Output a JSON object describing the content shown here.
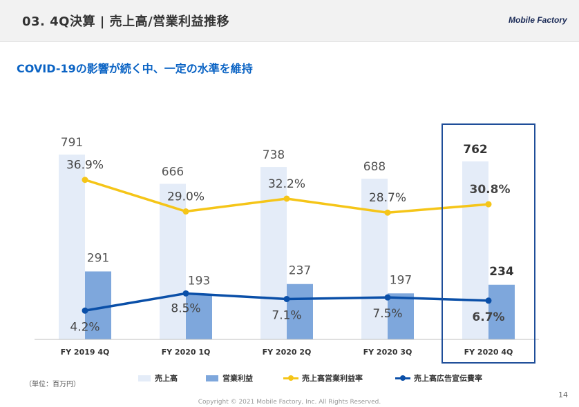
{
  "header": {
    "title": "03. 4Q決算 | 売上高/営業利益推移",
    "logo_text": "Mobile Factory"
  },
  "subtitle": "COVID-19の影響が続く中、一定の水準を維持",
  "chart_data": {
    "type": "bar",
    "title": "",
    "categories": [
      "FY 2019 4Q",
      "FY 2020 1Q",
      "FY 2020 2Q",
      "FY 2020 3Q",
      "FY 2020 4Q"
    ],
    "series": [
      {
        "name": "売上高",
        "kind": "bar",
        "color": "#e4ecf8",
        "values": [
          791,
          666,
          738,
          688,
          762
        ],
        "labels": [
          "791",
          "666",
          "738",
          "688",
          "762"
        ]
      },
      {
        "name": "営業利益",
        "kind": "bar",
        "color": "#7ea7dc",
        "values": [
          291,
          193,
          237,
          197,
          234
        ],
        "labels": [
          "291",
          "193",
          "237",
          "197",
          "234"
        ]
      },
      {
        "name": "売上高営業利益率",
        "kind": "line",
        "color": "#f5c518",
        "values": [
          36.9,
          29.0,
          32.2,
          28.7,
          30.8
        ],
        "labels": [
          "36.9%",
          "29.0%",
          "32.2%",
          "28.7%",
          "30.8%"
        ]
      },
      {
        "name": "売上高広告宣伝費率",
        "kind": "line",
        "color": "#0a4fa8",
        "values": [
          4.2,
          8.5,
          7.1,
          7.5,
          6.7
        ],
        "labels": [
          "4.2%",
          "8.5%",
          "7.1%",
          "7.5%",
          "6.7%"
        ]
      }
    ],
    "highlight_category": "FY 2020 4Q",
    "highlight_color": "#1f4e99",
    "bar_ylim": [
      0,
      1010
    ],
    "line_ylim": [
      -3,
      56
    ],
    "grid": false,
    "legend": "bottom"
  },
  "unit_note": "（単位：百万円）",
  "page_number": "14",
  "copyright": "Copyright © 2021 Mobile Factory, Inc. All Rights Reserved."
}
